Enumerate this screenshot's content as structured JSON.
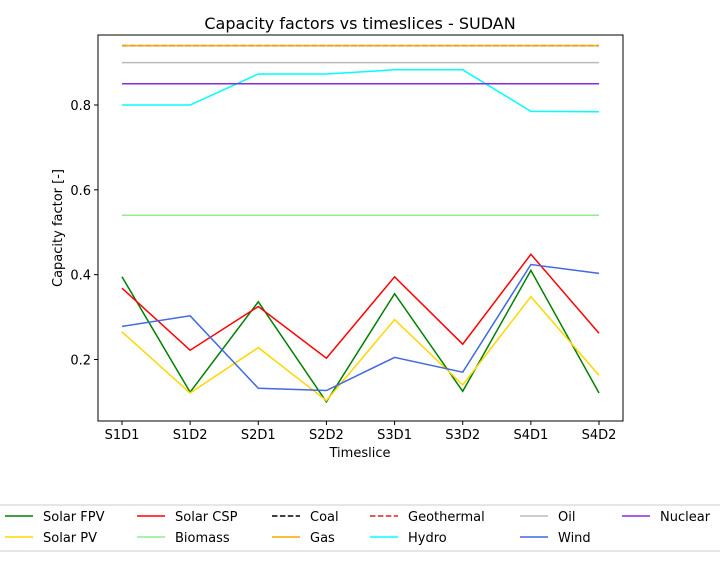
{
  "chart_data": {
    "type": "line",
    "title": "Capacity factors vs timeslices - SUDAN",
    "xlabel": "Timeslice",
    "ylabel": "Capacity factor [-]",
    "categories": [
      "S1D1",
      "S1D2",
      "S2D1",
      "S2D2",
      "S3D1",
      "S3D2",
      "S4D1",
      "S4D2"
    ],
    "ylim": [
      0.055,
      0.965
    ],
    "yticks": [
      0.2,
      0.4,
      0.6,
      0.8
    ],
    "ytick_labels": [
      "0.2",
      "0.4",
      "0.6",
      "0.8"
    ],
    "grid": false,
    "legend_position": "bottom",
    "series": [
      {
        "name": "Solar FPV",
        "color": "#008000",
        "dash": "solid",
        "values": [
          0.395,
          0.123,
          0.336,
          0.1,
          0.355,
          0.125,
          0.41,
          0.121
        ]
      },
      {
        "name": "Solar PV",
        "color": "#ffd700",
        "dash": "solid",
        "values": [
          0.265,
          0.121,
          0.228,
          0.103,
          0.294,
          0.14,
          0.348,
          0.163
        ]
      },
      {
        "name": "Solar CSP",
        "color": "#ff0000",
        "dash": "solid",
        "values": [
          0.368,
          0.222,
          0.325,
          0.203,
          0.395,
          0.236,
          0.448,
          0.262
        ]
      },
      {
        "name": "Biomass",
        "color": "#90ee90",
        "dash": "solid",
        "values": [
          0.54,
          0.54,
          0.54,
          0.54,
          0.54,
          0.54,
          0.54,
          0.54
        ]
      },
      {
        "name": "Coal",
        "color": "#000000",
        "dash": "dashed",
        "values": [
          0.94,
          0.94,
          0.94,
          0.94,
          0.94,
          0.94,
          0.94,
          0.94
        ]
      },
      {
        "name": "Gas",
        "color": "#ffa500",
        "dash": "solid",
        "values": [
          0.94,
          0.94,
          0.94,
          0.94,
          0.94,
          0.94,
          0.94,
          0.94
        ]
      },
      {
        "name": "Geothermal",
        "color": "#d62728",
        "dash": "dashed",
        "values": [
          0.85,
          0.85,
          0.85,
          0.85,
          0.85,
          0.85,
          0.85,
          0.85
        ]
      },
      {
        "name": "Hydro",
        "color": "#00ffff",
        "dash": "solid",
        "values": [
          0.8,
          0.8,
          0.873,
          0.873,
          0.883,
          0.883,
          0.785,
          0.784
        ]
      },
      {
        "name": "Oil",
        "color": "#bbbbbb",
        "dash": "solid",
        "values": [
          0.9,
          0.9,
          0.9,
          0.9,
          0.9,
          0.9,
          0.9,
          0.9
        ]
      },
      {
        "name": "Wind",
        "color": "#4169e1",
        "dash": "solid",
        "values": [
          0.278,
          0.303,
          0.132,
          0.127,
          0.205,
          0.17,
          0.424,
          0.403
        ]
      },
      {
        "name": "Nuclear",
        "color": "#8a2be2",
        "dash": "solid",
        "values": [
          0.85,
          0.85,
          0.85,
          0.85,
          0.85,
          0.85,
          0.85,
          0.85
        ]
      }
    ]
  }
}
